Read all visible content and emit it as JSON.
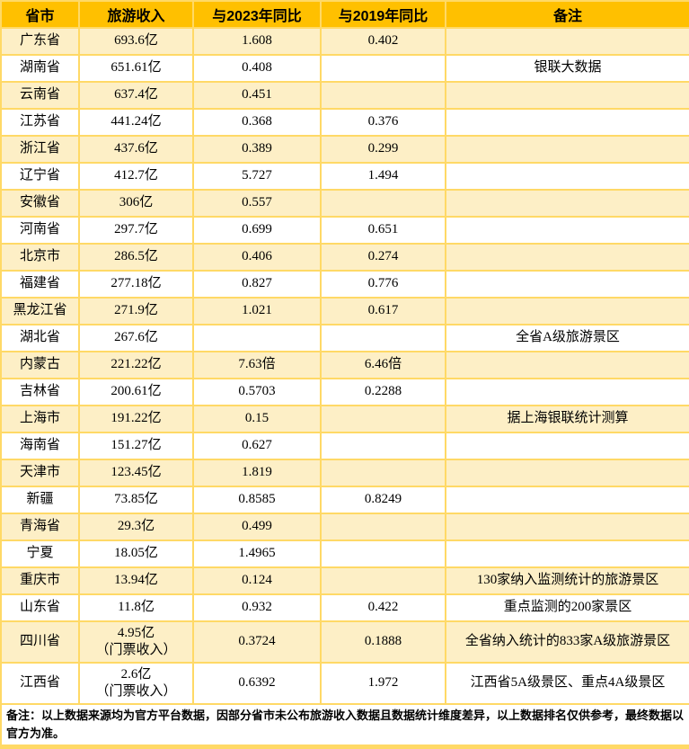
{
  "colors": {
    "header_bg": "#FFC000",
    "stripe_bg": "#FDEFC6",
    "border": "#FFD966"
  },
  "table": {
    "columns": [
      {
        "label": "省市"
      },
      {
        "label": "旅游收入"
      },
      {
        "label": "与2023年同比"
      },
      {
        "label": "与2019年同比"
      },
      {
        "label": "备注"
      }
    ],
    "rows": [
      {
        "province": "广东省",
        "revenue": "693.6亿",
        "vs2023": "1.608",
        "vs2019": "0.402",
        "note": ""
      },
      {
        "province": "湖南省",
        "revenue": "651.61亿",
        "vs2023": "0.408",
        "vs2019": "",
        "note": "银联大数据"
      },
      {
        "province": "云南省",
        "revenue": "637.4亿",
        "vs2023": "0.451",
        "vs2019": "",
        "note": ""
      },
      {
        "province": "江苏省",
        "revenue": "441.24亿",
        "vs2023": "0.368",
        "vs2019": "0.376",
        "note": ""
      },
      {
        "province": "浙江省",
        "revenue": "437.6亿",
        "vs2023": "0.389",
        "vs2019": "0.299",
        "note": ""
      },
      {
        "province": "辽宁省",
        "revenue": "412.7亿",
        "vs2023": "5.727",
        "vs2019": "1.494",
        "note": ""
      },
      {
        "province": "安徽省",
        "revenue": "306亿",
        "vs2023": "0.557",
        "vs2019": "",
        "note": ""
      },
      {
        "province": "河南省",
        "revenue": "297.7亿",
        "vs2023": "0.699",
        "vs2019": "0.651",
        "note": ""
      },
      {
        "province": "北京市",
        "revenue": "286.5亿",
        "vs2023": "0.406",
        "vs2019": "0.274",
        "note": ""
      },
      {
        "province": "福建省",
        "revenue": "277.18亿",
        "vs2023": "0.827",
        "vs2019": "0.776",
        "note": ""
      },
      {
        "province": "黑龙江省",
        "revenue": "271.9亿",
        "vs2023": "1.021",
        "vs2019": "0.617",
        "note": ""
      },
      {
        "province": "湖北省",
        "revenue": "267.6亿",
        "vs2023": "",
        "vs2019": "",
        "note": "全省A级旅游景区"
      },
      {
        "province": "内蒙古",
        "revenue": "221.22亿",
        "vs2023": "7.63倍",
        "vs2019": "6.46倍",
        "note": ""
      },
      {
        "province": "吉林省",
        "revenue": "200.61亿",
        "vs2023": "0.5703",
        "vs2019": "0.2288",
        "note": ""
      },
      {
        "province": "上海市",
        "revenue": "191.22亿",
        "vs2023": "0.15",
        "vs2019": "",
        "note": "据上海银联统计测算"
      },
      {
        "province": "海南省",
        "revenue": "151.27亿",
        "vs2023": "0.627",
        "vs2019": "",
        "note": ""
      },
      {
        "province": "天津市",
        "revenue": "123.45亿",
        "vs2023": "1.819",
        "vs2019": "",
        "note": ""
      },
      {
        "province": "新疆",
        "revenue": "73.85亿",
        "vs2023": "0.8585",
        "vs2019": "0.8249",
        "note": ""
      },
      {
        "province": "青海省",
        "revenue": "29.3亿",
        "vs2023": "0.499",
        "vs2019": "",
        "note": ""
      },
      {
        "province": "宁夏",
        "revenue": "18.05亿",
        "vs2023": "1.4965",
        "vs2019": "",
        "note": ""
      },
      {
        "province": "重庆市",
        "revenue": "13.94亿",
        "vs2023": "0.124",
        "vs2019": "",
        "note": "130家纳入监测统计的旅游景区"
      },
      {
        "province": "山东省",
        "revenue": "11.8亿",
        "vs2023": "0.932",
        "vs2019": "0.422",
        "note": "重点监测的200家景区"
      },
      {
        "province": "四川省",
        "revenue": "4.95亿",
        "revenue_sub": "（门票收入）",
        "vs2023": "0.3724",
        "vs2019": "0.1888",
        "note": "全省纳入统计的833家A级旅游景区"
      },
      {
        "province": "江西省",
        "revenue": "2.6亿",
        "revenue_sub": "（门票收入）",
        "vs2023": "0.6392",
        "vs2019": "1.972",
        "note": "江西省5A级景区、重点4A级景区"
      }
    ],
    "footer": "备注：以上数据来源均为官方平台数据，因部分省市未公布旅游收入数据且数据统计维度差异，以上数据排名仅供参考，最终数据以官方为准。"
  }
}
